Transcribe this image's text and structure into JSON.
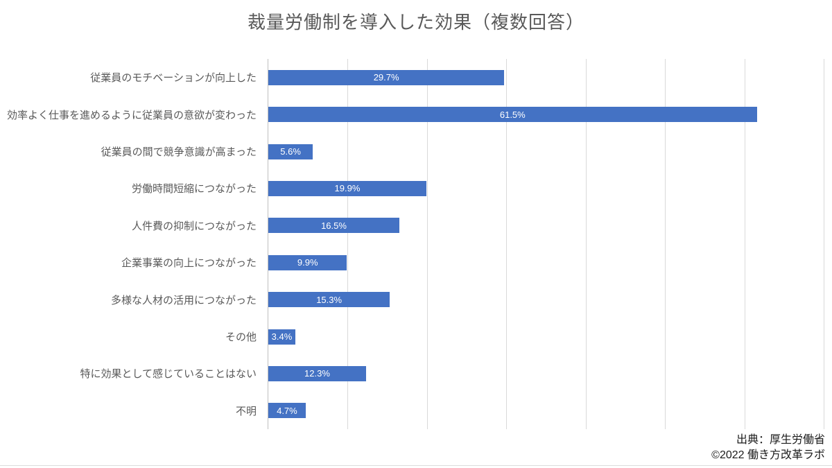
{
  "title": "裁量労働制を導入した効果（複数回答）",
  "footer": {
    "source": "出典：厚生労働省",
    "copyright": "©2022 働き方改革ラボ"
  },
  "colors": {
    "bar": "#4472c4",
    "gridline": "#d9d9d9",
    "axis_line": "#bfbfbf",
    "title_text": "#595959",
    "category_text": "#595959",
    "value_text": "#ffffff",
    "footer_text": "#1a1a1a",
    "background": "#ffffff"
  },
  "chart_data": {
    "type": "bar",
    "orientation": "horizontal",
    "title": "裁量労働制を導入した効果（複数回答）",
    "categories": [
      "従業員のモチベーションが向上した",
      "効率よく仕事を進めるように従業員の意欲が変わった",
      "従業員の間で競争意識が高まった",
      "労働時間短縮につながった",
      "人件費の抑制につながった",
      "企業事業の向上につながった",
      "多様な人材の活用につながった",
      "その他",
      "特に効果として感じていることはない",
      "不明"
    ],
    "values": [
      29.7,
      61.5,
      5.6,
      19.9,
      16.5,
      9.9,
      15.3,
      3.4,
      12.3,
      4.7
    ],
    "value_labels": [
      "29.7%",
      "61.5%",
      "5.6%",
      "19.9%",
      "16.5%",
      "9.9%",
      "15.3%",
      "3.4%",
      "12.3%",
      "4.7%"
    ],
    "xlabel": "",
    "ylabel": "",
    "xlim": [
      0,
      70
    ],
    "gridline_interval": 10,
    "grid": true,
    "legend": false,
    "data_label_position": "center-inside",
    "unit": "%"
  }
}
